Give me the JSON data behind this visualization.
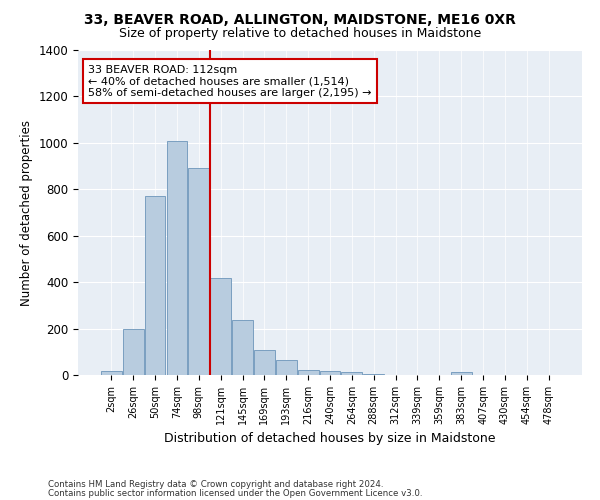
{
  "title": "33, BEAVER ROAD, ALLINGTON, MAIDSTONE, ME16 0XR",
  "subtitle": "Size of property relative to detached houses in Maidstone",
  "xlabel": "Distribution of detached houses by size in Maidstone",
  "ylabel": "Number of detached properties",
  "categories": [
    "2sqm",
    "26sqm",
    "50sqm",
    "74sqm",
    "98sqm",
    "121sqm",
    "145sqm",
    "169sqm",
    "193sqm",
    "216sqm",
    "240sqm",
    "264sqm",
    "288sqm",
    "312sqm",
    "339sqm",
    "359sqm",
    "383sqm",
    "407sqm",
    "430sqm",
    "454sqm",
    "478sqm"
  ],
  "values": [
    18,
    200,
    770,
    1010,
    890,
    420,
    238,
    108,
    65,
    22,
    18,
    12,
    5,
    0,
    0,
    0,
    15,
    0,
    0,
    0,
    0
  ],
  "bar_color": "#b8ccdf",
  "bar_edge_color": "#7a9fc0",
  "vline_x": 4.5,
  "vline_color": "#cc0000",
  "annotation_text": "33 BEAVER ROAD: 112sqm\n← 40% of detached houses are smaller (1,514)\n58% of semi-detached houses are larger (2,195) →",
  "annotation_box_color": "#ffffff",
  "annotation_box_edge_color": "#cc0000",
  "ylim": [
    0,
    1400
  ],
  "yticks": [
    0,
    200,
    400,
    600,
    800,
    1000,
    1200,
    1400
  ],
  "bg_color": "#e8eef5",
  "footnote1": "Contains HM Land Registry data © Crown copyright and database right 2024.",
  "footnote2": "Contains public sector information licensed under the Open Government Licence v3.0.",
  "title_fontsize": 10,
  "subtitle_fontsize": 9
}
